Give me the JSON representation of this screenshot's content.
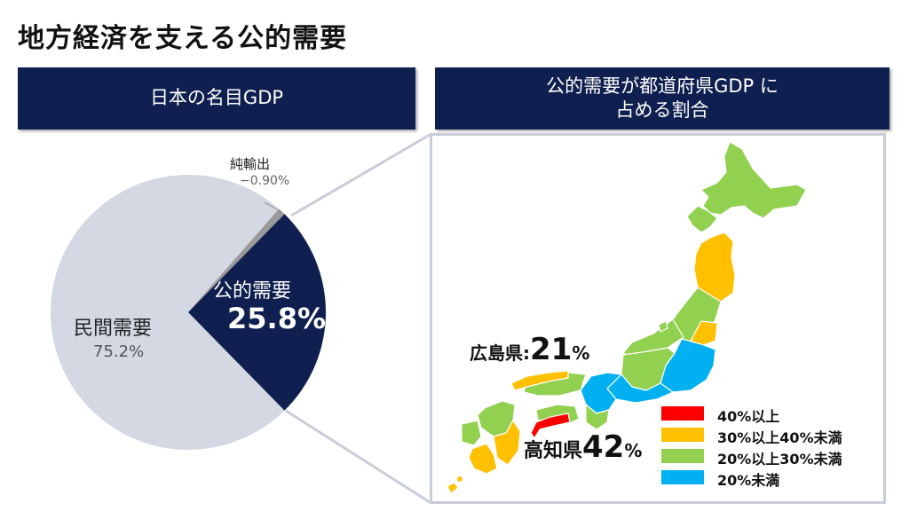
{
  "page_title": "地方経済を支える公的需要",
  "left_panel": {
    "header": "日本の名目GDP",
    "net_exports": {
      "label": "純輸出",
      "value": "−0.90%"
    },
    "public_demand": {
      "label": "公的需要",
      "value": "25.8%"
    },
    "private_demand": {
      "label": "民間需要",
      "value": "75.2%"
    }
  },
  "right_panel": {
    "header_line1": "公的需要が都道府県GDP に",
    "header_line2": "占める割合",
    "callouts": {
      "hiroshima": {
        "label": "広島県",
        "sep": ":",
        "value": "21",
        "unit": "%"
      },
      "kochi": {
        "label": "高知県",
        "value": "42",
        "unit": "%"
      }
    },
    "legend": [
      {
        "label": "40%以上",
        "color": "#ff0000"
      },
      {
        "label": "30%以上40%未満",
        "color": "#ffc000"
      },
      {
        "label": "20%以上30%未満",
        "color": "#92d050"
      },
      {
        "label": "20%未満",
        "color": "#00b0f0"
      }
    ]
  },
  "colors": {
    "navy": "#0f1f4f",
    "private": "#d3d8e2",
    "net_exports": "#9a9a9a",
    "frame": "#c9cdd8"
  },
  "chart_data": {
    "type": "pie",
    "slices": [
      {
        "label": "公的需要",
        "value": 25.8
      },
      {
        "label": "民間需要",
        "value": 75.2
      },
      {
        "label": "純輸出",
        "value": -0.9
      }
    ]
  }
}
